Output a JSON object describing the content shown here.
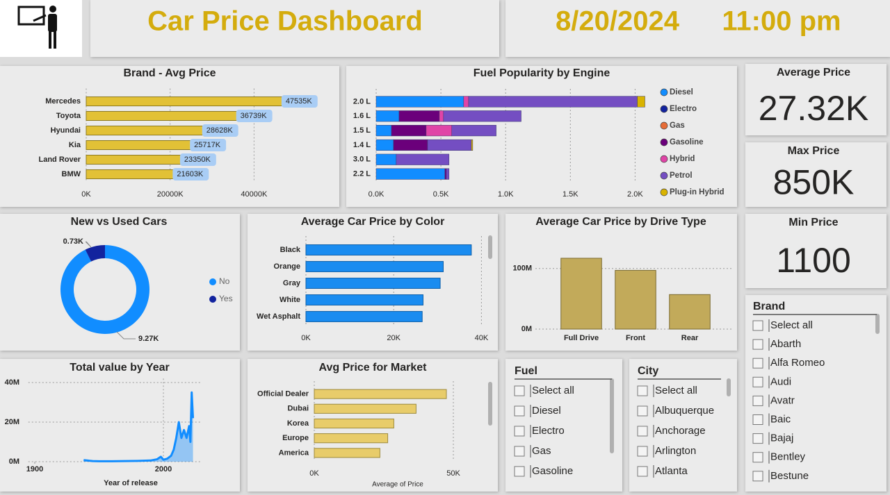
{
  "header": {
    "title": "Car Price Dashboard",
    "date": "8/20/2024",
    "time": "11:00 pm"
  },
  "chart_data": [
    {
      "type": "hbar",
      "title": "Brand - Avg Price",
      "categories": [
        "Mercedes",
        "Toyota",
        "Hyundai",
        "Kia",
        "Land Rover",
        "BMW"
      ],
      "values": [
        47535,
        36739,
        28628,
        25717,
        23350,
        21603
      ],
      "value_labels": [
        "47535K",
        "36739K",
        "28628K",
        "25717K",
        "23350K",
        "21603K"
      ],
      "color": "#e2c136",
      "xlim": [
        0,
        59000
      ],
      "xticks": [
        {
          "value": 0,
          "label": "0K"
        },
        {
          "value": 20000,
          "label": "20000K"
        },
        {
          "value": 40000,
          "label": "40000K"
        }
      ],
      "grid": true
    },
    {
      "type": "stacked_hbar",
      "title": "Fuel Popularity by Engine",
      "categories": [
        "2.0 L",
        "1.6 L",
        "1.5 L",
        "1.4 L",
        "3.0 L",
        "2.2 L"
      ],
      "series": [
        {
          "name": "Diesel",
          "color": "#118dff",
          "values": [
            676,
            177,
            118,
            134,
            155,
            531
          ]
        },
        {
          "name": "Electro",
          "color": "#12239e",
          "values": [
            0,
            0,
            0,
            0,
            0,
            0
          ]
        },
        {
          "name": "Gas",
          "color": "#e66c37",
          "values": [
            0,
            0,
            0,
            0,
            0,
            0
          ]
        },
        {
          "name": "Gasoline",
          "color": "#6b007b",
          "values": [
            0,
            311,
            268,
            263,
            0,
            11
          ]
        },
        {
          "name": "Hybrid",
          "color": "#e044a7",
          "values": [
            38,
            32,
            198,
            0,
            0,
            0
          ]
        },
        {
          "name": "Petrol",
          "color": "#744ec2",
          "values": [
            1303,
            600,
            343,
            338,
            408,
            21
          ]
        },
        {
          "name": "Plug-in Hybrid",
          "color": "#d9b300",
          "values": [
            59,
            0,
            0,
            11,
            0,
            0
          ]
        }
      ],
      "xlim": [
        0,
        2100
      ],
      "xticks": [
        {
          "value": 0,
          "label": "0.0K"
        },
        {
          "value": 500,
          "label": "0.5K"
        },
        {
          "value": 1000,
          "label": "1.0K"
        },
        {
          "value": 1500,
          "label": "1.5K"
        },
        {
          "value": 2000,
          "label": "2.0K"
        }
      ],
      "grid": true,
      "legend": "right"
    },
    {
      "type": "donut",
      "title": "New vs Used Cars",
      "categories": [
        "No",
        "Yes"
      ],
      "values": [
        9.27,
        0.73
      ],
      "value_labels": [
        "9.27K",
        "0.73K"
      ],
      "colors": [
        "#118dff",
        "#12239e"
      ],
      "legend": "right"
    },
    {
      "type": "hbar",
      "title": "Average Car Price by Color",
      "categories": [
        "Black",
        "Orange",
        "Gray",
        "White",
        "Wet Asphalt"
      ],
      "values": [
        37.7,
        31.3,
        30.6,
        26.7,
        26.5
      ],
      "color": "#1a8cf0",
      "xlim": [
        0,
        42
      ],
      "xticks": [
        {
          "value": 0,
          "label": "0K"
        },
        {
          "value": 20,
          "label": "20K"
        },
        {
          "value": 40,
          "label": "40K"
        }
      ],
      "grid": true
    },
    {
      "type": "bar",
      "title": "Average Car Price by Drive Type",
      "categories": [
        "Full Drive",
        "Front",
        "Rear"
      ],
      "values": [
        117,
        97,
        57
      ],
      "color": "#c2aa5a",
      "ylim": [
        0,
        125
      ],
      "yticks": [
        {
          "value": 0,
          "label": "0M"
        },
        {
          "value": 100,
          "label": "100M"
        }
      ],
      "grid": true
    },
    {
      "type": "area",
      "title": "Total value by Year",
      "x": [
        1938,
        1945,
        1950,
        1960,
        1970,
        1980,
        1990,
        1995,
        1998,
        2000,
        2003,
        2006,
        2008,
        2010,
        2012,
        2014,
        2016,
        2018,
        2020,
        2021,
        2022,
        2023
      ],
      "values": [
        0.8,
        0.3,
        0.2,
        0.2,
        0.3,
        0.4,
        0.6,
        1.2,
        2.5,
        1,
        1.5,
        3,
        6,
        12,
        20,
        12,
        16,
        12,
        18,
        10,
        35,
        22
      ],
      "color": "#118dff",
      "xlim": [
        1895,
        2030
      ],
      "xticks": [
        1900,
        2000
      ],
      "ylim": [
        0,
        42
      ],
      "yticks": [
        {
          "value": 0,
          "label": "0M"
        },
        {
          "value": 20,
          "label": "20M"
        },
        {
          "value": 40,
          "label": "40M"
        }
      ],
      "xlabel": "Year of release",
      "grid": true
    },
    {
      "type": "hbar",
      "title": "Avg Price for Market",
      "categories": [
        "Official Dealer",
        "Dubai",
        "Korea",
        "Europe",
        "America"
      ],
      "values": [
        47.5,
        36.6,
        28.6,
        26.4,
        23.6
      ],
      "color": "#e8cc6a",
      "xlim": [
        0,
        62
      ],
      "xticks": [
        {
          "value": 0,
          "label": "0K"
        },
        {
          "value": 50,
          "label": "50K"
        }
      ],
      "xlabel": "Average of Price",
      "grid": true
    }
  ],
  "cards": [
    {
      "title": "Average Price",
      "value": "27.32K"
    },
    {
      "title": "Max Price",
      "value": "850K"
    },
    {
      "title": "Min Price",
      "value": "1100"
    }
  ],
  "slicers": [
    {
      "title": "Fuel",
      "items": [
        "Select all",
        "Diesel",
        "Electro",
        "Gas",
        "Gasoline"
      ]
    },
    {
      "title": "City",
      "items": [
        "Select all",
        "Albuquerque",
        "Anchorage",
        "Arlington",
        "Atlanta"
      ]
    },
    {
      "title": "Brand",
      "items": [
        "Select all",
        "Abarth",
        "Alfa Romeo",
        "Audi",
        "Avatr",
        "Baic",
        "Bajaj",
        "Bentley",
        "Bestune"
      ]
    }
  ]
}
